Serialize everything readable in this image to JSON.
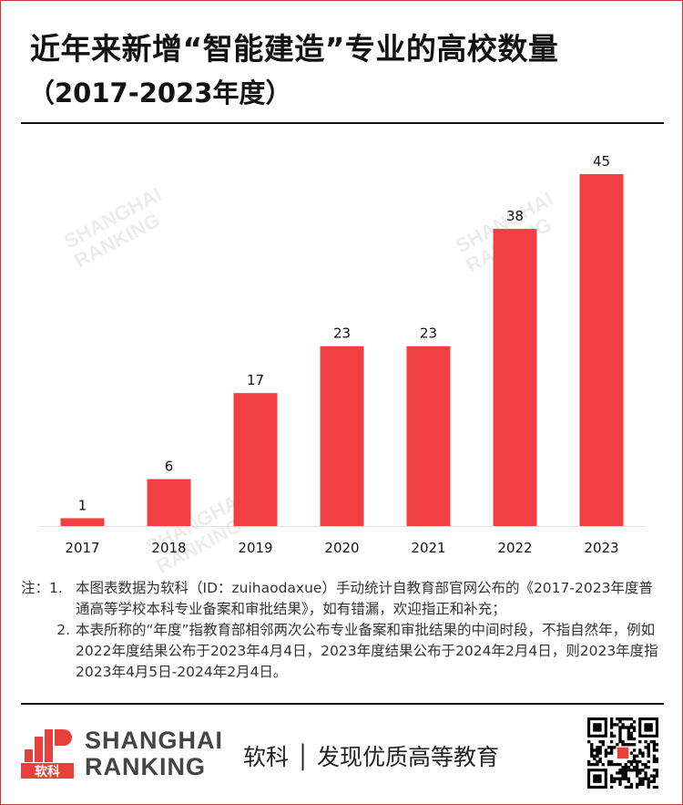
{
  "header": {
    "title": "近年来新增“智能建造”专业的高校数量",
    "subtitle": "（2017-2023年度）"
  },
  "chart_data": {
    "type": "bar",
    "categories": [
      "2017",
      "2018",
      "2019",
      "2020",
      "2021",
      "2022",
      "2023"
    ],
    "values": [
      1,
      6,
      17,
      23,
      23,
      38,
      45
    ],
    "ylim": [
      0,
      45
    ],
    "grid": false,
    "legend": "none",
    "bar_color": "#f23f41"
  },
  "notes": {
    "prefix_1": "注：1.",
    "text_1": "本图表数据为软科（ID：zuihaodaxue）手动统计自教育部官网公布的《2017-2023年度普通高等学校本科专业备案和审批结果》，如有错漏，欢迎指正和补充；",
    "prefix_2": "2.",
    "text_2": "本表所称的“年度”指教育部相邻两次公布专业备案和审批结果的中间时段，不指自然年，例如2022年度结果公布于2023年4月4日，2023年度结果公布于2024年2月4日，则2023年度指2023年4月5日-2024年2月4日。"
  },
  "footer": {
    "logo_text": "软科",
    "brand_line1": "SHANGHAI",
    "brand_line2": "RANKING",
    "slogan": "软科 │ 发现优质高等教育"
  },
  "watermark": {
    "line1": "SHANGHAI",
    "line2": "RANKING"
  },
  "colors": {
    "accent": "#f23f41",
    "brand_red": "#e8413c",
    "frame": "#c23b3b"
  }
}
